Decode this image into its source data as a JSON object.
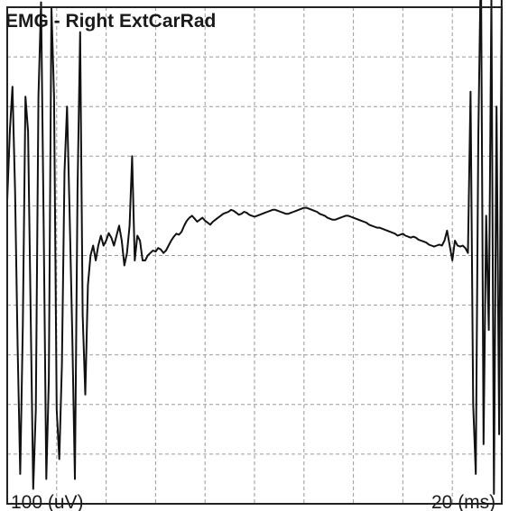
{
  "chart_data": {
    "type": "line",
    "title": "EMG - Right ExtCarRad",
    "amplitude_scale_label": "100  (uV)",
    "time_scale_label": "20  (ms)",
    "grid": true,
    "legend": "none",
    "x": [
      0,
      1,
      2,
      3,
      4,
      5,
      6,
      7,
      8,
      9,
      10,
      11,
      12,
      13,
      14,
      15,
      16,
      17,
      18,
      19,
      20,
      21,
      22,
      23,
      24,
      25,
      26,
      27,
      28,
      29,
      30,
      31,
      32,
      33,
      34,
      35,
      36,
      37,
      38,
      39,
      40,
      41,
      42,
      43,
      44,
      45,
      46,
      47,
      48,
      49,
      50,
      51,
      52,
      53,
      54,
      55,
      56,
      57,
      58,
      59,
      60,
      61,
      62,
      63,
      64,
      65,
      66,
      67,
      68,
      69,
      70,
      71,
      72,
      73,
      74,
      75,
      76,
      77,
      78,
      79,
      80,
      81,
      82,
      83,
      84,
      85,
      86,
      87,
      88,
      89,
      90,
      91,
      92,
      93,
      94,
      95,
      96,
      97,
      98,
      99,
      100,
      101,
      102,
      103,
      104,
      105,
      106,
      107,
      108,
      109,
      110,
      111,
      112,
      113,
      114,
      115,
      116,
      117,
      118,
      119,
      120,
      121,
      122,
      123,
      124,
      125,
      126,
      127,
      128,
      129,
      130,
      131,
      132,
      133,
      134,
      135,
      136,
      137,
      138,
      139,
      140,
      141,
      142,
      143,
      144,
      145,
      146,
      147,
      148,
      149,
      150,
      151,
      152,
      153,
      154,
      155,
      156,
      157,
      158,
      159,
      160,
      161,
      162,
      163,
      164,
      165,
      166,
      167,
      168,
      169,
      170,
      171,
      172,
      173,
      174,
      175,
      176,
      177,
      178,
      179,
      180,
      181,
      182,
      183,
      184,
      185,
      186,
      187,
      188,
      189,
      190
    ],
    "y": [
      110,
      250,
      340,
      130,
      -180,
      -440,
      -140,
      320,
      250,
      -120,
      -470,
      -310,
      320,
      510,
      60,
      -450,
      -250,
      500,
      320,
      -310,
      -410,
      -220,
      170,
      300,
      80,
      -160,
      -450,
      130,
      450,
      -120,
      -280,
      -60,
      0,
      20,
      -10,
      20,
      40,
      20,
      30,
      45,
      36,
      20,
      40,
      60,
      30,
      -20,
      5,
      60,
      200,
      -10,
      40,
      30,
      -10,
      -10,
      0,
      5,
      10,
      8,
      15,
      12,
      5,
      10,
      20,
      30,
      38,
      44,
      42,
      48,
      60,
      70,
      76,
      80,
      74,
      68,
      72,
      76,
      70,
      66,
      62,
      68,
      72,
      76,
      80,
      84,
      86,
      88,
      92,
      90,
      86,
      82,
      84,
      88,
      86,
      82,
      80,
      78,
      80,
      82,
      84,
      86,
      88,
      90,
      92,
      92,
      90,
      88,
      86,
      84,
      84,
      86,
      88,
      90,
      92,
      94,
      96,
      96,
      94,
      92,
      90,
      88,
      84,
      82,
      80,
      76,
      74,
      72,
      72,
      74,
      76,
      78,
      80,
      80,
      78,
      76,
      74,
      72,
      70,
      68,
      66,
      62,
      60,
      58,
      56,
      56,
      54,
      52,
      50,
      48,
      46,
      44,
      40,
      42,
      44,
      40,
      38,
      36,
      38,
      36,
      32,
      30,
      28,
      26,
      22,
      20,
      18,
      20,
      22,
      20,
      30,
      50,
      20,
      -10,
      30,
      20,
      18,
      20,
      15,
      5,
      330,
      -300,
      -440,
      240,
      600,
      -380,
      80,
      -150,
      520,
      -480,
      300,
      -360,
      560
    ],
    "xlim": [
      0,
      190
    ],
    "ylim": [
      -500,
      500
    ]
  }
}
